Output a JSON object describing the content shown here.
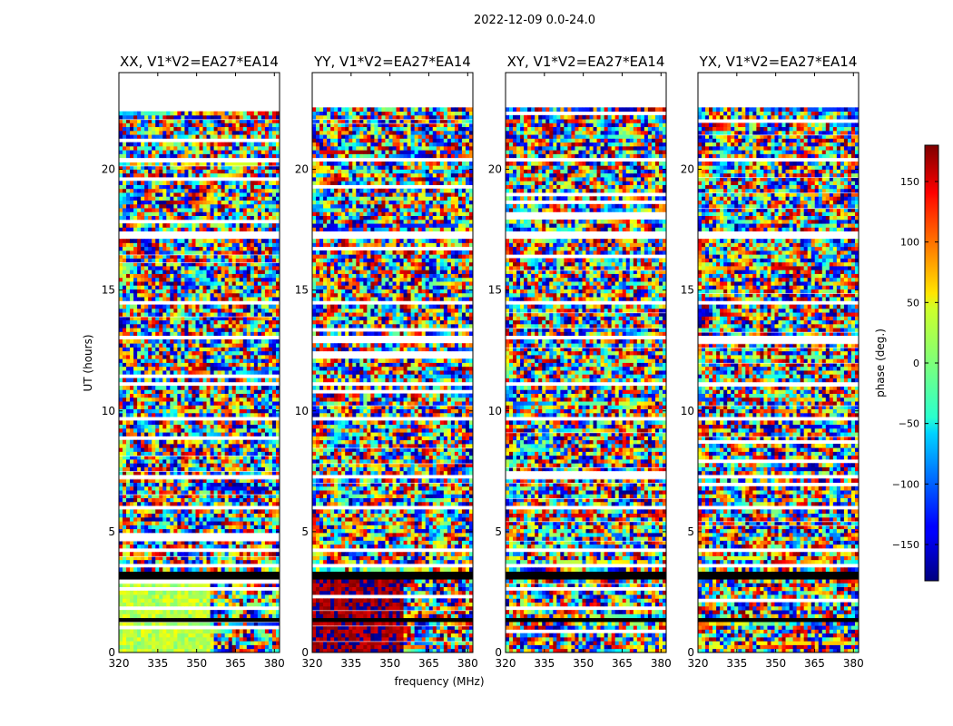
{
  "figure_title": "2022-12-09 0.0-24.0",
  "xlabel": "frequency (MHz)",
  "ylabel": "UT (hours)",
  "chart_data": {
    "type": "heatmap",
    "x_range": [
      320,
      382
    ],
    "y_range": [
      0,
      24
    ],
    "x_ticks": [
      320,
      335,
      350,
      365,
      380
    ],
    "y_ticks": [
      0,
      5,
      10,
      15,
      20
    ],
    "panels": [
      {
        "title": "XX, V1*V2=EA27*EA14",
        "bias": 20,
        "coherent_low": true
      },
      {
        "title": "YY, V1*V2=EA27*EA14",
        "bias": 170,
        "coherent_low": true
      },
      {
        "title": "XY, V1*V2=EA27*EA14",
        "bias": 0,
        "coherent_low": false
      },
      {
        "title": "YX, V1*V2=EA27*EA14",
        "bias": 0,
        "coherent_low": false
      }
    ],
    "colorbar": {
      "label": "phase (deg.)",
      "range": [
        -180,
        180
      ],
      "ticks": [
        150,
        100,
        50,
        0,
        -50,
        -100,
        -150
      ],
      "colormap": "jet"
    },
    "no_data_bands_hours": [
      [
        22.6,
        24.0
      ],
      [
        20.3,
        20.5
      ],
      [
        17.2,
        17.4
      ],
      [
        14.4,
        14.6
      ],
      [
        13.0,
        13.2
      ],
      [
        11.0,
        11.2
      ],
      [
        9.6,
        9.75
      ],
      [
        8.9,
        9.0
      ],
      [
        7.15,
        7.3
      ],
      [
        6.0,
        6.1
      ],
      [
        4.2,
        4.3
      ],
      [
        3.5,
        3.6
      ]
    ],
    "flagged_black_bands_hours": [
      [
        3.05,
        3.3
      ],
      [
        1.35,
        1.45
      ],
      [
        14.2,
        14.28
      ],
      [
        9.05,
        9.12
      ],
      [
        4.95,
        5.0
      ]
    ]
  }
}
